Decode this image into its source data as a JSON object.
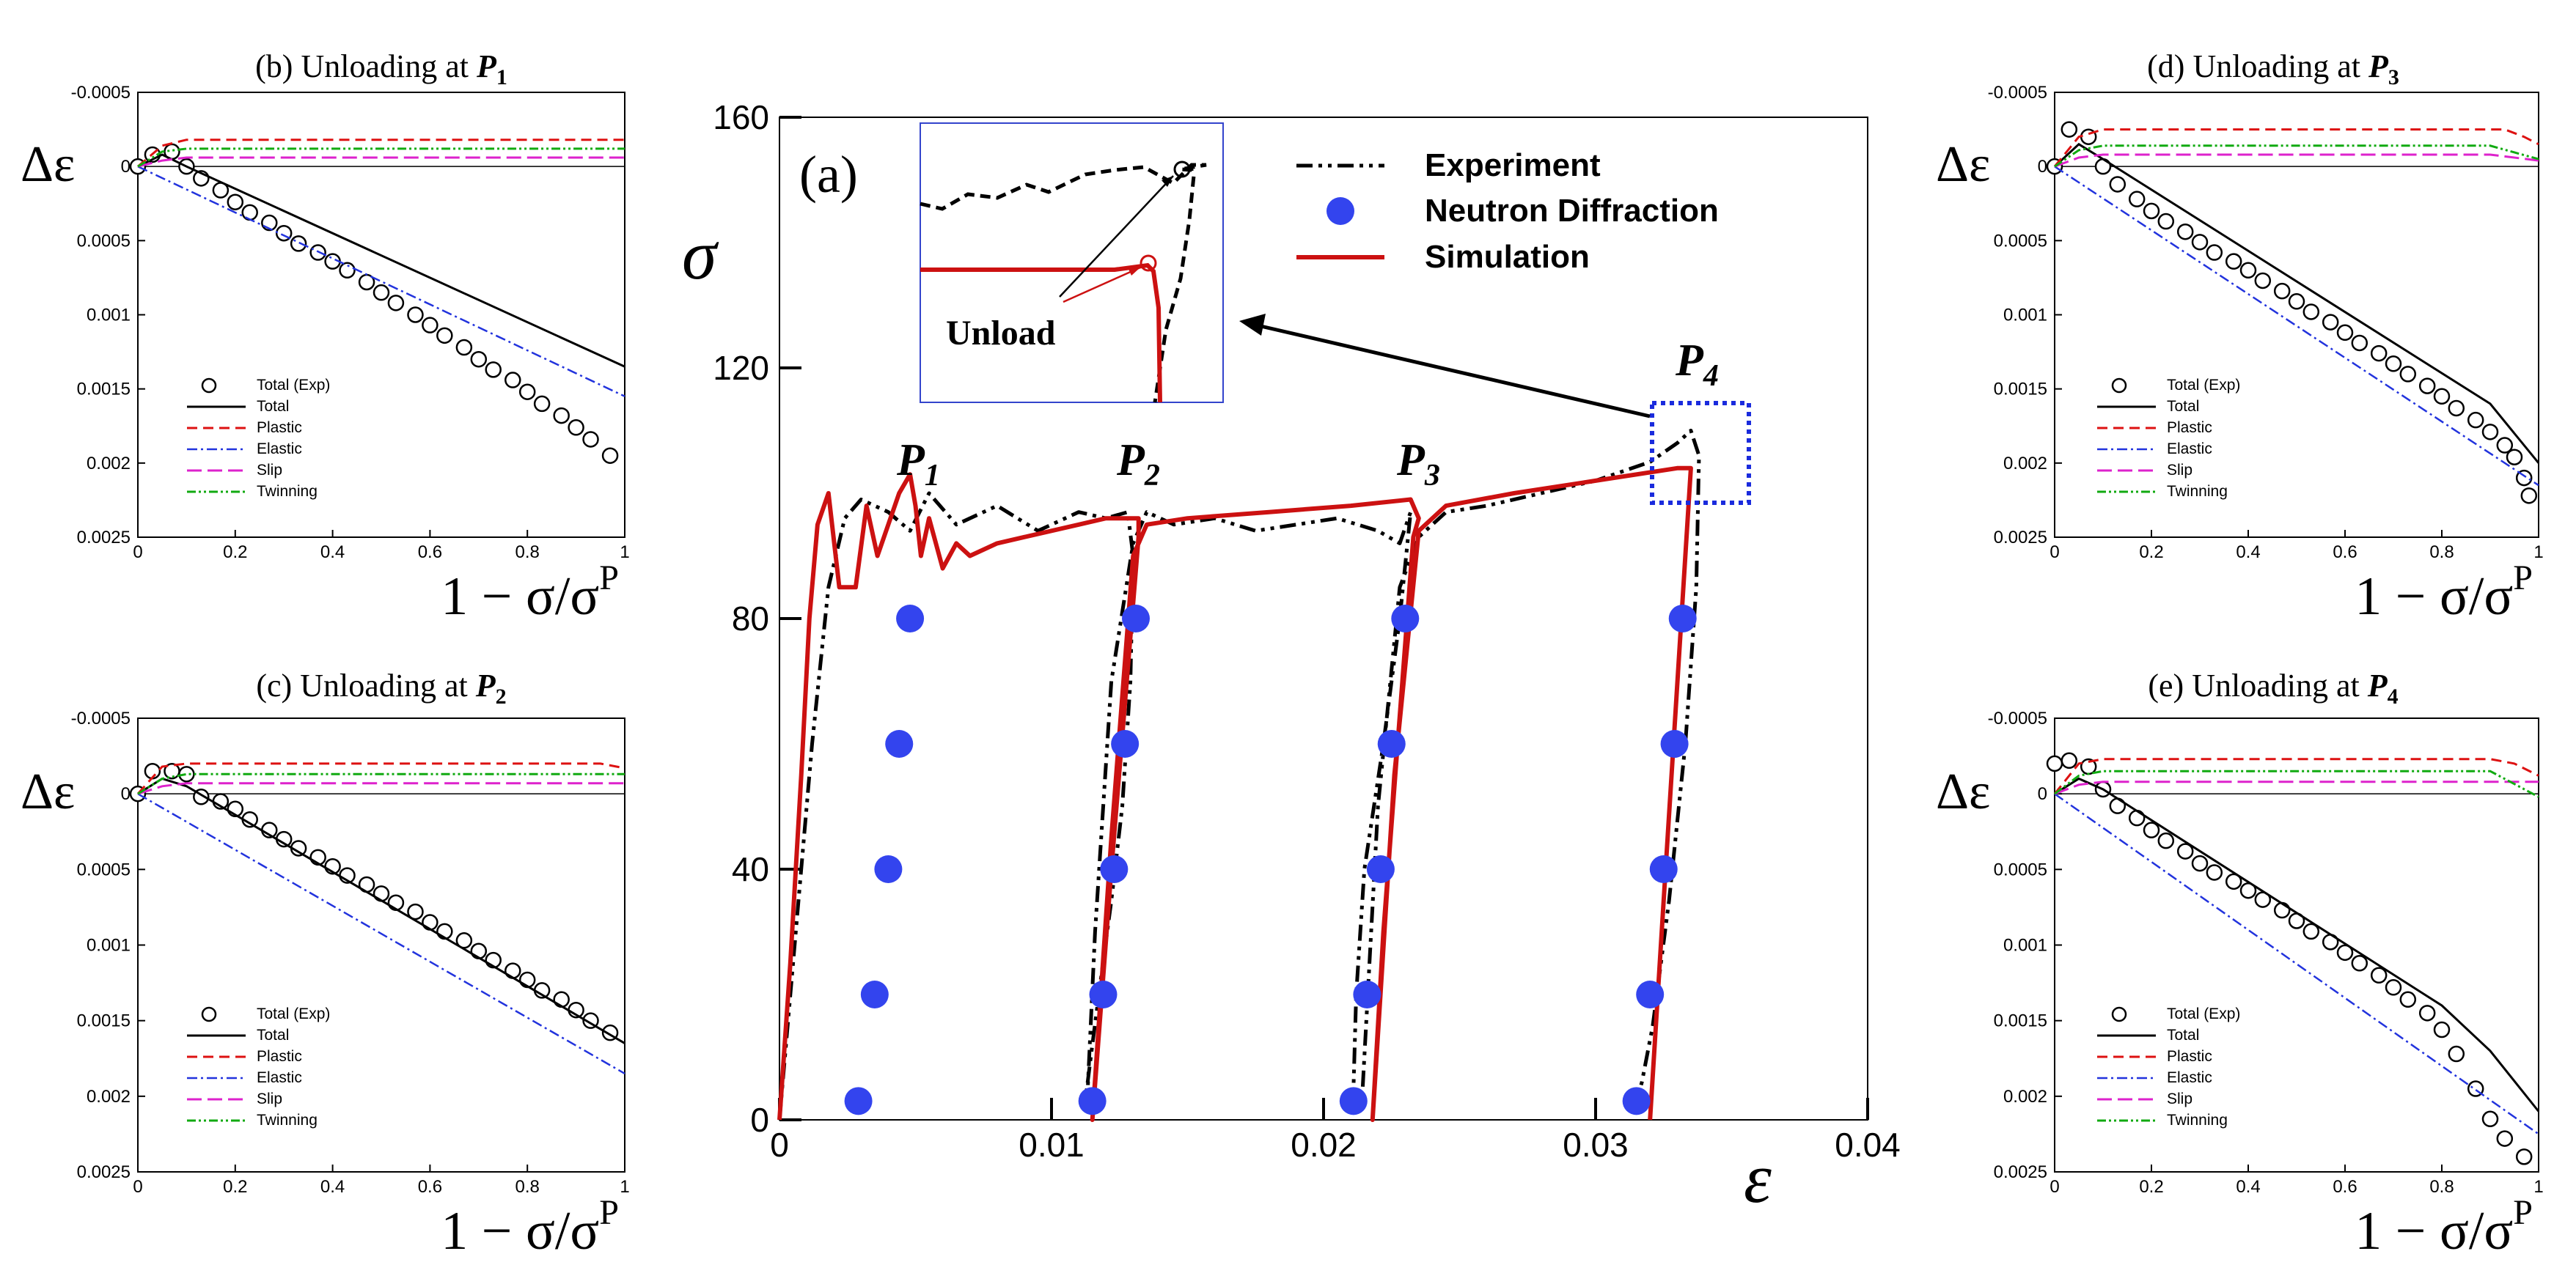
{
  "chart_data": [
    {
      "id": "a",
      "type": "line",
      "panel_label": "(a)",
      "xlabel": "ε",
      "ylabel": "σ",
      "xlim": [
        0,
        0.04
      ],
      "ylim": [
        0,
        160
      ],
      "xticks": [
        0,
        0.01,
        0.02,
        0.03,
        0.04
      ],
      "xtick_labels": [
        "0",
        "0.01",
        "0.02",
        "0.03",
        "0.04"
      ],
      "yticks": [
        0,
        40,
        80,
        120,
        160
      ],
      "ytick_labels": [
        "0",
        "40",
        "80",
        "120",
        "160"
      ],
      "legend": [
        "Experiment",
        "Neutron Diffraction",
        "Simulation"
      ],
      "annotations": {
        "p1": "P",
        "p1_sub": "1",
        "p2": "P",
        "p2_sub": "2",
        "p3": "P",
        "p3_sub": "3",
        "p4": "P",
        "p4_sub": "4",
        "inset_label": "Unload"
      },
      "series": [
        {
          "name": "Experiment",
          "style": "dash-dot",
          "color": "#000000",
          "x": [
            0,
            0.0012,
            0.0018,
            0.0024,
            0.003,
            0.004,
            0.0048,
            0.0055,
            0.0065,
            0.008,
            0.0095,
            0.011,
            0.012,
            0.0128,
            0.013,
            0.0129,
            0.0126,
            0.0122,
            0.0118,
            0.0115,
            0.0113,
            0.0113,
            0.0116,
            0.0122,
            0.013,
            0.0135,
            0.0145,
            0.016,
            0.0175,
            0.019,
            0.0205,
            0.022,
            0.0228,
            0.0232,
            0.0228,
            0.0222,
            0.0215,
            0.0212,
            0.0211,
            0.0214,
            0.022,
            0.0228,
            0.0235,
            0.0245,
            0.026,
            0.028,
            0.03,
            0.032,
            0.033,
            0.0335,
            0.0338,
            0.0337,
            0.0333,
            0.0327,
            0.0321,
            0.0317,
            0.0315,
            0.0315
          ],
          "y": [
            0,
            60,
            85,
            96,
            99,
            97,
            94,
            100,
            95,
            98,
            94,
            97,
            96,
            97,
            90,
            70,
            50,
            35,
            22,
            12,
            5,
            2,
            30,
            70,
            92,
            97,
            95,
            96,
            94,
            95,
            96,
            94,
            92,
            97,
            80,
            60,
            40,
            20,
            5,
            2,
            50,
            85,
            93,
            97,
            98,
            100,
            102,
            105,
            108,
            110,
            106,
            85,
            60,
            35,
            15,
            6,
            3,
            2
          ]
        },
        {
          "name": "Simulation",
          "style": "solid",
          "color": "#cc1111",
          "x": [
            0,
            0.0004,
            0.0008,
            0.0011,
            0.0014,
            0.0018,
            0.0022,
            0.0028,
            0.0032,
            0.0036,
            0.004,
            0.0044,
            0.0048,
            0.005,
            0.0052,
            0.0055,
            0.006,
            0.0065,
            0.007,
            0.008,
            0.009,
            0.01,
            0.011,
            0.012,
            0.0128,
            0.0132,
            0.0132,
            0.0122,
            0.0115,
            0.0122,
            0.013,
            0.0135,
            0.015,
            0.018,
            0.021,
            0.0232,
            0.0235,
            0.0233,
            0.0222,
            0.0218,
            0.0226,
            0.0235,
            0.0245,
            0.027,
            0.03,
            0.033,
            0.0335,
            0.0325,
            0.032
          ],
          "y": [
            0,
            25,
            55,
            80,
            95,
            100,
            85,
            85,
            98,
            90,
            95,
            100,
            103,
            98,
            90,
            96,
            88,
            92,
            90,
            92,
            93,
            94,
            95,
            96,
            96,
            96,
            93,
            40,
            0,
            45,
            90,
            95,
            96,
            97,
            98,
            99,
            96,
            93,
            30,
            0,
            55,
            94,
            98,
            100,
            102,
            104,
            104,
            35,
            0
          ]
        },
        {
          "name": "Neutron Diffraction",
          "style": "marker",
          "color": "#3344ee",
          "x": [
            0.0029,
            0.0035,
            0.004,
            0.0044,
            0.0048,
            0.0115,
            0.0119,
            0.0123,
            0.0127,
            0.0131,
            0.0211,
            0.0216,
            0.0221,
            0.0225,
            0.023,
            0.0315,
            0.032,
            0.0325,
            0.0329,
            0.0332
          ],
          "y": [
            3,
            20,
            40,
            60,
            80,
            3,
            20,
            40,
            60,
            80,
            3,
            20,
            40,
            60,
            80,
            3,
            20,
            40,
            60,
            80
          ]
        }
      ]
    },
    {
      "id": "b",
      "type": "line",
      "title": "(b) Unloading at ",
      "title_p": "P",
      "title_sub": "1",
      "xlabel": "1 − σ/σ",
      "xlabel_sup": "P",
      "ylabel": "Δε",
      "xlim": [
        0,
        1
      ],
      "ylim": [
        -0.0005,
        0.0025
      ],
      "y_reversed": true,
      "xtick_labels": [
        "0",
        "0.2",
        "0.4",
        "0.6",
        "0.8",
        "1"
      ],
      "ytick_labels": [
        "-0.0005",
        "0",
        "0.0005",
        "0.001",
        "0.0015",
        "0.002",
        "0.0025"
      ],
      "legend": [
        "Total (Exp)",
        "Total",
        "Plastic",
        "Elastic",
        "Slip",
        "Twinning"
      ],
      "series": [
        {
          "name": "Total (Exp)",
          "x": [
            0,
            0.03,
            0.07,
            0.1,
            0.13,
            0.17,
            0.2,
            0.23,
            0.27,
            0.3,
            0.33,
            0.37,
            0.4,
            0.43,
            0.47,
            0.5,
            0.53,
            0.57,
            0.6,
            0.63,
            0.67,
            0.7,
            0.73,
            0.77,
            0.8,
            0.83,
            0.87,
            0.9,
            0.93,
            0.97
          ],
          "y": [
            0,
            -8e-05,
            -0.0001,
            0,
            8e-05,
            0.00016,
            0.00024,
            0.00031,
            0.00038,
            0.00045,
            0.00052,
            0.00058,
            0.00064,
            0.0007,
            0.00078,
            0.00085,
            0.00092,
            0.001,
            0.00107,
            0.00114,
            0.00122,
            0.0013,
            0.00137,
            0.00144,
            0.00152,
            0.0016,
            0.00168,
            0.00176,
            0.00184,
            0.00195
          ]
        },
        {
          "name": "Total",
          "x": [
            0,
            0.05,
            0.1,
            1
          ],
          "y": [
            0,
            -8e-05,
            0,
            0.00135
          ]
        },
        {
          "name": "Plastic",
          "x": [
            0,
            0.05,
            0.1,
            1
          ],
          "y": [
            0,
            -0.00014,
            -0.00018,
            -0.00018
          ]
        },
        {
          "name": "Elastic",
          "x": [
            0,
            1
          ],
          "y": [
            0,
            0.00155
          ]
        },
        {
          "name": "Slip",
          "x": [
            0,
            0.05,
            0.1,
            1
          ],
          "y": [
            0,
            -4e-05,
            -6e-05,
            -6e-05
          ]
        },
        {
          "name": "Twinning",
          "x": [
            0,
            0.05,
            0.1,
            1
          ],
          "y": [
            0,
            -0.0001,
            -0.00012,
            -0.00012
          ]
        }
      ]
    },
    {
      "id": "c",
      "type": "line",
      "title": "(c) Unloading at ",
      "title_p": "P",
      "title_sub": "2",
      "xlabel": "1 − σ/σ",
      "xlabel_sup": "P",
      "ylabel": "Δε",
      "xlim": [
        0,
        1
      ],
      "ylim": [
        -0.0005,
        0.0025
      ],
      "y_reversed": true,
      "xtick_labels": [
        "0",
        "0.2",
        "0.4",
        "0.6",
        "0.8",
        "1"
      ],
      "ytick_labels": [
        "-0.0005",
        "0",
        "0.0005",
        "0.001",
        "0.0015",
        "0.002",
        "0.0025"
      ],
      "legend": [
        "Total (Exp)",
        "Total",
        "Plastic",
        "Elastic",
        "Slip",
        "Twinning"
      ],
      "series": [
        {
          "name": "Total (Exp)",
          "x": [
            0,
            0.03,
            0.07,
            0.1,
            0.13,
            0.17,
            0.2,
            0.23,
            0.27,
            0.3,
            0.33,
            0.37,
            0.4,
            0.43,
            0.47,
            0.5,
            0.53,
            0.57,
            0.6,
            0.63,
            0.67,
            0.7,
            0.73,
            0.77,
            0.8,
            0.83,
            0.87,
            0.9,
            0.93,
            0.97
          ],
          "y": [
            0,
            -0.00015,
            -0.00015,
            -0.00013,
            2e-05,
            5e-05,
            0.0001,
            0.00017,
            0.00024,
            0.0003,
            0.00036,
            0.00042,
            0.00048,
            0.00054,
            0.0006,
            0.00066,
            0.00072,
            0.00078,
            0.00085,
            0.00091,
            0.00097,
            0.00104,
            0.0011,
            0.00117,
            0.00123,
            0.0013,
            0.00136,
            0.00143,
            0.0015,
            0.00158
          ]
        },
        {
          "name": "Total",
          "x": [
            0,
            0.05,
            0.1,
            1
          ],
          "y": [
            0,
            -0.0001,
            -5e-05,
            0.00165
          ]
        },
        {
          "name": "Plastic",
          "x": [
            0,
            0.05,
            0.1,
            0.95,
            1
          ],
          "y": [
            0,
            -0.00018,
            -0.0002,
            -0.0002,
            -0.00017
          ]
        },
        {
          "name": "Elastic",
          "x": [
            0,
            1
          ],
          "y": [
            0,
            0.00185
          ]
        },
        {
          "name": "Slip",
          "x": [
            0,
            0.05,
            0.1,
            1
          ],
          "y": [
            0,
            -5e-05,
            -7e-05,
            -7e-05
          ]
        },
        {
          "name": "Twinning",
          "x": [
            0,
            0.05,
            0.1,
            1
          ],
          "y": [
            0,
            -0.0001,
            -0.00013,
            -0.00013
          ]
        }
      ]
    },
    {
      "id": "d",
      "type": "line",
      "title": "(d) Unloading at ",
      "title_p": "P",
      "title_sub": "3",
      "xlabel": "1 − σ/σ",
      "xlabel_sup": "P",
      "ylabel": "Δε",
      "xlim": [
        0,
        1
      ],
      "ylim": [
        -0.0005,
        0.0025
      ],
      "y_reversed": true,
      "xtick_labels": [
        "0",
        "0.2",
        "0.4",
        "0.6",
        "0.8",
        "1"
      ],
      "ytick_labels": [
        "-0.0005",
        "0",
        "0.0005",
        "0.001",
        "0.0015",
        "0.002",
        "0.0025"
      ],
      "legend": [
        "Total (Exp)",
        "Total",
        "Plastic",
        "Elastic",
        "Slip",
        "Twinning"
      ],
      "series": [
        {
          "name": "Total (Exp)",
          "x": [
            0,
            0.03,
            0.07,
            0.1,
            0.13,
            0.17,
            0.2,
            0.23,
            0.27,
            0.3,
            0.33,
            0.37,
            0.4,
            0.43,
            0.47,
            0.5,
            0.53,
            0.57,
            0.6,
            0.63,
            0.67,
            0.7,
            0.73,
            0.77,
            0.8,
            0.83,
            0.87,
            0.9,
            0.93,
            0.95,
            0.97,
            0.98
          ],
          "y": [
            0,
            -0.00025,
            -0.0002,
            0,
            0.00012,
            0.00022,
            0.0003,
            0.00037,
            0.00044,
            0.00051,
            0.00058,
            0.00064,
            0.0007,
            0.00077,
            0.00084,
            0.00091,
            0.00098,
            0.00105,
            0.00112,
            0.00119,
            0.00126,
            0.00133,
            0.0014,
            0.00148,
            0.00155,
            0.00163,
            0.00171,
            0.00179,
            0.00188,
            0.00196,
            0.0021,
            0.00222
          ]
        },
        {
          "name": "Total",
          "x": [
            0,
            0.05,
            0.1,
            0.9,
            0.95,
            1
          ],
          "y": [
            0,
            -0.00015,
            -5e-05,
            0.0016,
            0.0018,
            0.002
          ]
        },
        {
          "name": "Plastic",
          "x": [
            0,
            0.05,
            0.1,
            0.93,
            0.97,
            1
          ],
          "y": [
            0,
            -0.0002,
            -0.00025,
            -0.00025,
            -0.0002,
            -0.00015
          ]
        },
        {
          "name": "Elastic",
          "x": [
            0,
            1
          ],
          "y": [
            0,
            0.00215
          ]
        },
        {
          "name": "Slip",
          "x": [
            0,
            0.05,
            0.1,
            0.9,
            1
          ],
          "y": [
            0,
            -6e-05,
            -8e-05,
            -8e-05,
            -4e-05
          ]
        },
        {
          "name": "Twinning",
          "x": [
            0,
            0.05,
            0.1,
            0.9,
            1
          ],
          "y": [
            0,
            -0.00011,
            -0.00014,
            -0.00014,
            -5e-05
          ]
        }
      ]
    },
    {
      "id": "e",
      "type": "line",
      "title": "(e) Unloading at ",
      "title_p": "P",
      "title_sub": "4",
      "xlabel": "1 − σ/σ",
      "xlabel_sup": "P",
      "ylabel": "Δε",
      "xlim": [
        0,
        1
      ],
      "ylim": [
        -0.0005,
        0.0025
      ],
      "y_reversed": true,
      "xtick_labels": [
        "0",
        "0.2",
        "0.4",
        "0.6",
        "0.8",
        "1"
      ],
      "ytick_labels": [
        "-0.0005",
        "0",
        "0.0005",
        "0.001",
        "0.0015",
        "0.002",
        "0.0025"
      ],
      "legend": [
        "Total (Exp)",
        "Total",
        "Plastic",
        "Elastic",
        "Slip",
        "Twinning"
      ],
      "series": [
        {
          "name": "Total (Exp)",
          "x": [
            0,
            0.03,
            0.07,
            0.1,
            0.13,
            0.17,
            0.2,
            0.23,
            0.27,
            0.3,
            0.33,
            0.37,
            0.4,
            0.43,
            0.47,
            0.5,
            0.53,
            0.57,
            0.6,
            0.63,
            0.67,
            0.7,
            0.73,
            0.77,
            0.8,
            0.83,
            0.87,
            0.9,
            0.93,
            0.97
          ],
          "y": [
            -0.0002,
            -0.00022,
            -0.00018,
            -3e-05,
            8e-05,
            0.00016,
            0.00024,
            0.00031,
            0.00038,
            0.00046,
            0.00052,
            0.00058,
            0.00064,
            0.0007,
            0.00077,
            0.00084,
            0.00091,
            0.00098,
            0.00105,
            0.00112,
            0.0012,
            0.00128,
            0.00136,
            0.00145,
            0.00156,
            0.00172,
            0.00195,
            0.00215,
            0.00228,
            0.0024
          ]
        },
        {
          "name": "Total",
          "x": [
            0,
            0.05,
            0.1,
            0.8,
            0.9,
            1
          ],
          "y": [
            0,
            -0.0001,
            -3e-05,
            0.0014,
            0.0017,
            0.0021
          ]
        },
        {
          "name": "Plastic",
          "x": [
            0,
            0.05,
            0.1,
            0.9,
            0.95,
            1
          ],
          "y": [
            0,
            -0.0002,
            -0.00023,
            -0.00023,
            -0.0002,
            -0.00012
          ]
        },
        {
          "name": "Elastic",
          "x": [
            0,
            1
          ],
          "y": [
            0,
            0.00225
          ]
        },
        {
          "name": "Slip",
          "x": [
            0,
            0.05,
            0.1,
            1
          ],
          "y": [
            0,
            -6e-05,
            -8e-05,
            -8e-05
          ]
        },
        {
          "name": "Twinning",
          "x": [
            0,
            0.05,
            0.1,
            0.9,
            1
          ],
          "y": [
            0,
            -0.00012,
            -0.00015,
            -0.00015,
            2e-05
          ]
        }
      ]
    }
  ]
}
